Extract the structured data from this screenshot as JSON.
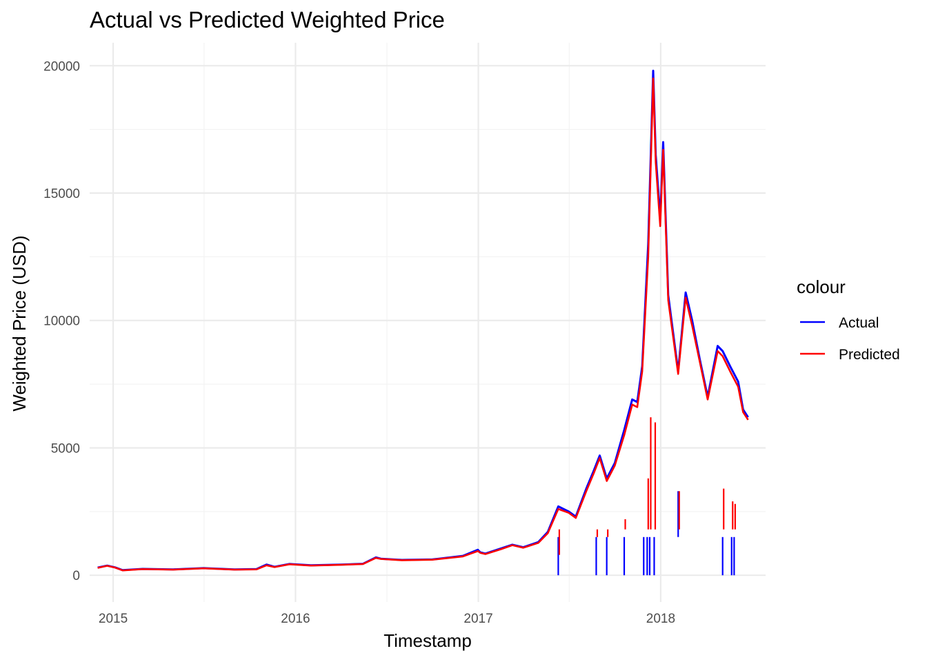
{
  "chart_data": {
    "type": "line",
    "title": "Actual vs Predicted Weighted Price",
    "xlabel": "Timestamp",
    "ylabel": "Weighted Price (USD)",
    "x_scale": "date",
    "xlim": [
      "2014-11-15",
      "2018-07-30"
    ],
    "ylim": [
      -1050,
      20900
    ],
    "x_ticks": [
      "2015-01-01",
      "2016-01-01",
      "2017-01-01",
      "2018-01-01"
    ],
    "x_tick_labels": [
      "2015",
      "2016",
      "2017",
      "2018"
    ],
    "y_ticks": [
      0,
      5000,
      10000,
      15000,
      20000
    ],
    "y_tick_labels": [
      "0",
      "5000",
      "10000",
      "15000",
      "20000"
    ],
    "grid": true,
    "legend": {
      "title": "colour",
      "placement": "right"
    },
    "series": [
      {
        "name": "Actual",
        "color": "#0000ff",
        "x": [
          "2014-12-01",
          "2014-12-20",
          "2015-01-05",
          "2015-01-20",
          "2015-03-01",
          "2015-05-01",
          "2015-07-01",
          "2015-09-01",
          "2015-10-15",
          "2015-11-04",
          "2015-11-20",
          "2015-12-20",
          "2016-02-01",
          "2016-04-01",
          "2016-05-15",
          "2016-06-10",
          "2016-06-20",
          "2016-08-01",
          "2016-10-01",
          "2016-12-01",
          "2016-12-31",
          "2017-01-05",
          "2017-01-15",
          "2017-02-15",
          "2017-03-10",
          "2017-04-01",
          "2017-05-01",
          "2017-05-20",
          "2017-06-10",
          "2017-07-01",
          "2017-07-15",
          "2017-08-05",
          "2017-08-20",
          "2017-09-01",
          "2017-09-15",
          "2017-10-01",
          "2017-10-20",
          "2017-11-05",
          "2017-11-15",
          "2017-11-25",
          "2017-12-07",
          "2017-12-17",
          "2017-12-22",
          "2017-12-31",
          "2018-01-06",
          "2018-01-16",
          "2018-02-05",
          "2018-02-20",
          "2018-03-05",
          "2018-03-20",
          "2018-04-05",
          "2018-04-25",
          "2018-05-05",
          "2018-05-20",
          "2018-06-05",
          "2018-06-15",
          "2018-06-25"
        ],
        "values": [
          300,
          380,
          310,
          200,
          250,
          230,
          280,
          230,
          240,
          420,
          330,
          440,
          390,
          420,
          450,
          700,
          650,
          600,
          620,
          760,
          1000,
          900,
          850,
          1050,
          1200,
          1100,
          1300,
          1700,
          2700,
          2500,
          2300,
          3400,
          4100,
          4700,
          3800,
          4400,
          5700,
          6900,
          6800,
          8200,
          13000,
          19800,
          16500,
          14000,
          17000,
          11000,
          8000,
          11100,
          10000,
          8500,
          7000,
          9000,
          8800,
          8200,
          7600,
          6500,
          6200
        ]
      },
      {
        "name": "Predicted",
        "color": "#ff0000",
        "x": [
          "2014-12-01",
          "2014-12-20",
          "2015-01-05",
          "2015-01-20",
          "2015-03-01",
          "2015-05-01",
          "2015-07-01",
          "2015-09-01",
          "2015-10-15",
          "2015-11-04",
          "2015-11-20",
          "2015-12-20",
          "2016-02-01",
          "2016-04-01",
          "2016-05-15",
          "2016-06-10",
          "2016-06-20",
          "2016-08-01",
          "2016-10-01",
          "2016-12-01",
          "2016-12-31",
          "2017-01-05",
          "2017-01-15",
          "2017-02-15",
          "2017-03-10",
          "2017-04-01",
          "2017-05-01",
          "2017-05-20",
          "2017-06-10",
          "2017-07-01",
          "2017-07-15",
          "2017-08-05",
          "2017-08-20",
          "2017-09-01",
          "2017-09-15",
          "2017-10-01",
          "2017-10-20",
          "2017-11-05",
          "2017-11-15",
          "2017-11-25",
          "2017-12-07",
          "2017-12-17",
          "2017-12-22",
          "2017-12-31",
          "2018-01-06",
          "2018-01-16",
          "2018-02-05",
          "2018-02-20",
          "2018-03-05",
          "2018-03-20",
          "2018-04-05",
          "2018-04-25",
          "2018-05-05",
          "2018-05-20",
          "2018-06-05",
          "2018-06-15",
          "2018-06-25"
        ],
        "values": [
          290,
          370,
          300,
          190,
          240,
          220,
          270,
          220,
          230,
          390,
          320,
          430,
          380,
          410,
          440,
          680,
          640,
          590,
          610,
          740,
          950,
          880,
          830,
          1020,
          1180,
          1080,
          1270,
          1650,
          2600,
          2450,
          2250,
          3300,
          4000,
          4600,
          3700,
          4300,
          5500,
          6700,
          6600,
          8000,
          12500,
          19500,
          16200,
          13700,
          16700,
          10800,
          7900,
          10900,
          9800,
          8400,
          6900,
          8800,
          8600,
          8000,
          7400,
          6400,
          6100
        ]
      }
    ],
    "drops": [
      {
        "x": "2017-11-28",
        "actual": 0,
        "predicted": 1800
      },
      {
        "x": "2017-12-05",
        "actual": 0,
        "predicted": 3800
      },
      {
        "x": "2017-12-10",
        "actual": 0,
        "predicted": 6200
      },
      {
        "x": "2017-12-19",
        "actual": 0,
        "predicted": 6000
      },
      {
        "x": "2018-02-05",
        "actual": 3300,
        "predicted": 3300
      },
      {
        "x": "2018-05-05",
        "actual": 0,
        "predicted": 3400
      },
      {
        "x": "2018-05-23",
        "actual": 0,
        "predicted": 2900
      },
      {
        "x": "2018-05-28",
        "actual": 0,
        "predicted": 2800
      },
      {
        "x": "2017-08-25",
        "actual": 0,
        "predicted": 1500
      },
      {
        "x": "2017-09-15",
        "actual": 0,
        "predicted": 1500
      },
      {
        "x": "2017-10-20",
        "actual": 0,
        "predicted": 2200
      },
      {
        "x": "2017-06-10",
        "actual": 0,
        "predicted": 800
      }
    ]
  }
}
